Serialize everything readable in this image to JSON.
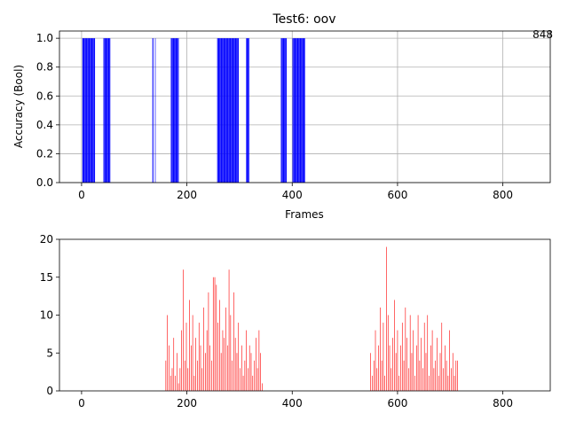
{
  "chart_data": [
    {
      "type": "bar",
      "title": "Test6: oov",
      "xlabel": "Frames",
      "ylabel": "Accuracy (Bool)",
      "annotation": "848",
      "color": "#0000ff",
      "grid": true,
      "xlim": [
        -42,
        890
      ],
      "xticks": [
        0,
        200,
        400,
        600,
        800
      ],
      "ylim": [
        0,
        1.05
      ],
      "yticks": [
        {
          "value": 0,
          "label": "0.0"
        },
        0.2,
        0.4,
        0.6,
        0.8,
        {
          "value": 1,
          "label": "1.0"
        }
      ],
      "x": [
        2,
        3,
        4,
        5,
        6,
        7,
        8,
        9,
        10,
        11,
        12,
        13,
        14,
        15,
        16,
        17,
        18,
        19,
        20,
        21,
        22,
        23,
        24,
        25,
        42,
        43,
        44,
        45,
        46,
        47,
        48,
        49,
        50,
        51,
        52,
        53,
        54,
        135,
        136,
        140,
        170,
        171,
        172,
        173,
        174,
        175,
        176,
        177,
        178,
        179,
        180,
        181,
        182,
        183,
        184,
        258,
        259,
        260,
        261,
        262,
        263,
        264,
        265,
        266,
        267,
        268,
        269,
        270,
        271,
        272,
        273,
        274,
        275,
        276,
        277,
        278,
        279,
        280,
        281,
        282,
        283,
        284,
        285,
        286,
        287,
        288,
        289,
        290,
        291,
        292,
        293,
        294,
        295,
        296,
        297,
        298,
        313,
        314,
        315,
        316,
        317,
        318,
        379,
        380,
        381,
        382,
        383,
        384,
        385,
        386,
        387,
        388,
        389,
        401,
        402,
        403,
        404,
        405,
        406,
        407,
        408,
        409,
        410,
        411,
        412,
        413,
        414,
        415,
        416,
        417,
        418,
        419,
        420,
        421,
        422,
        423,
        424
      ],
      "values": [
        1,
        1,
        1,
        1,
        1,
        1,
        1,
        1,
        1,
        1,
        1,
        1,
        1,
        1,
        1,
        1,
        1,
        1,
        1,
        1,
        1,
        1,
        1,
        1,
        1,
        1,
        1,
        1,
        1,
        1,
        1,
        1,
        1,
        1,
        1,
        1,
        1,
        1,
        1,
        1,
        1,
        1,
        1,
        1,
        1,
        1,
        1,
        1,
        1,
        1,
        1,
        1,
        1,
        1,
        1,
        1,
        1,
        1,
        1,
        1,
        1,
        1,
        1,
        1,
        1,
        1,
        1,
        1,
        1,
        1,
        1,
        1,
        1,
        1,
        1,
        1,
        1,
        1,
        1,
        1,
        1,
        1,
        1,
        1,
        1,
        1,
        1,
        1,
        1,
        1,
        1,
        1,
        1,
        1,
        1,
        1,
        1,
        1,
        1,
        1,
        1,
        1,
        1,
        1,
        1,
        1,
        1,
        1,
        1,
        1,
        1,
        1,
        1,
        1,
        1,
        1,
        1,
        1,
        1,
        1,
        1,
        1,
        1,
        1,
        1,
        1,
        1,
        1,
        1,
        1,
        1,
        1,
        1,
        1,
        1,
        1,
        1
      ]
    },
    {
      "type": "bar",
      "color": "#ff0000",
      "grid": false,
      "xlim": [
        -42,
        890
      ],
      "xticks": [
        0,
        200,
        400,
        600,
        800
      ],
      "ylim": [
        0,
        20
      ],
      "yticks": [
        0,
        5,
        10,
        15,
        20
      ],
      "x": [
        160,
        163,
        166,
        169,
        172,
        175,
        178,
        181,
        184,
        187,
        190,
        193,
        196,
        199,
        202,
        205,
        208,
        211,
        214,
        217,
        220,
        223,
        226,
        229,
        232,
        235,
        238,
        241,
        244,
        247,
        250,
        253,
        256,
        259,
        262,
        265,
        268,
        271,
        274,
        277,
        280,
        283,
        286,
        289,
        292,
        295,
        298,
        301,
        304,
        307,
        310,
        313,
        316,
        319,
        322,
        325,
        328,
        331,
        334,
        337,
        340,
        343,
        549,
        552,
        555,
        558,
        561,
        564,
        567,
        570,
        573,
        576,
        579,
        582,
        585,
        588,
        591,
        594,
        597,
        600,
        603,
        606,
        609,
        612,
        615,
        618,
        621,
        624,
        627,
        630,
        633,
        636,
        639,
        642,
        645,
        648,
        651,
        654,
        657,
        660,
        663,
        666,
        669,
        672,
        675,
        678,
        681,
        684,
        687,
        690,
        693,
        696,
        699,
        702,
        705,
        708,
        711,
        714
      ],
      "values": [
        4,
        10,
        6,
        2,
        3,
        7,
        2,
        5,
        1,
        3,
        8,
        16,
        4,
        9,
        3,
        12,
        6,
        10,
        2,
        7,
        4,
        9,
        6,
        3,
        11,
        5,
        8,
        13,
        6,
        4,
        15,
        15,
        14,
        9,
        12,
        5,
        8,
        7,
        11,
        6,
        16,
        10,
        4,
        13,
        7,
        5,
        9,
        3,
        6,
        2,
        4,
        8,
        3,
        6,
        5,
        2,
        4,
        7,
        3,
        8,
        5,
        1,
        5,
        2,
        4,
        8,
        3,
        6,
        11,
        4,
        9,
        2,
        19,
        10,
        6,
        3,
        7,
        12,
        5,
        8,
        2,
        6,
        9,
        4,
        11,
        7,
        3,
        10,
        5,
        8,
        2,
        6,
        10,
        4,
        7,
        3,
        9,
        5,
        10,
        2,
        6,
        8,
        3,
        4,
        7,
        2,
        5,
        9,
        3,
        6,
        4,
        2,
        8,
        3,
        5,
        2,
        4,
        4
      ]
    }
  ]
}
